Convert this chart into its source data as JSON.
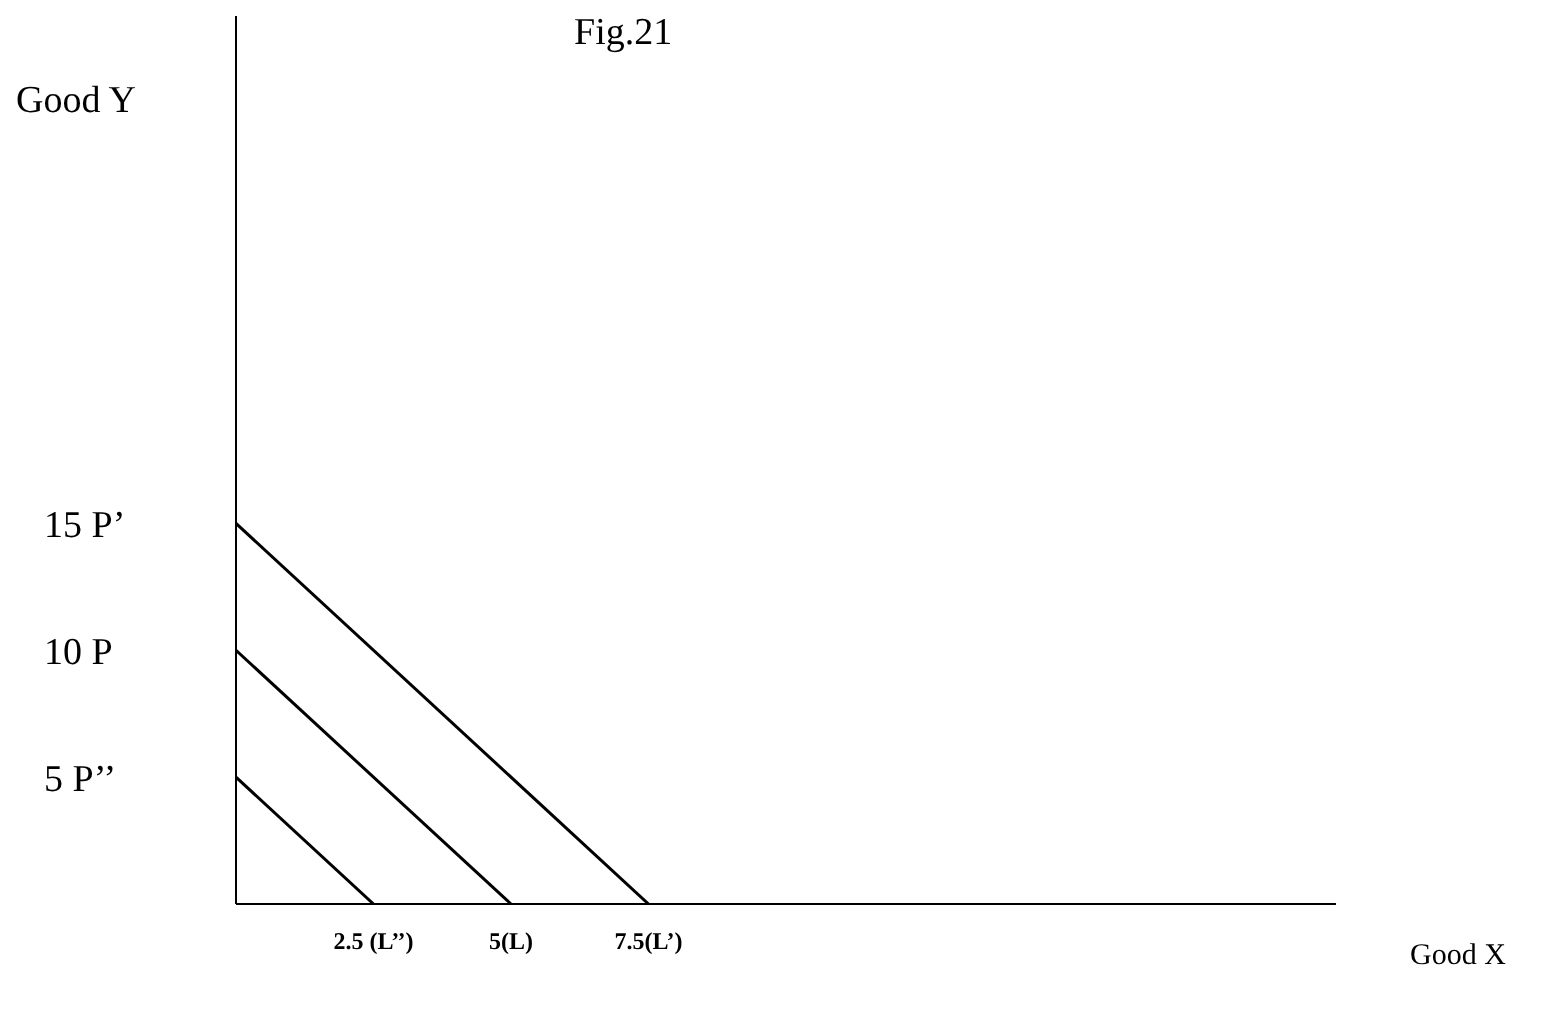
{
  "chart_data": {
    "type": "line",
    "title": "Fig.21",
    "xlabel": "Good X",
    "ylabel": "Good Y",
    "xlim": [
      0,
      20
    ],
    "ylim": [
      0,
      35
    ],
    "xticks": [
      {
        "value": 2.5,
        "label": "2.5 (L’’)"
      },
      {
        "value": 5,
        "label": "5(L)"
      },
      {
        "value": 7.5,
        "label": "7.5(L’)"
      }
    ],
    "yticks": [
      {
        "value": 5,
        "label": "5  P’’"
      },
      {
        "value": 10,
        "label": "10  P"
      },
      {
        "value": 15,
        "label": "15  P’"
      }
    ],
    "grid": false,
    "legend": false,
    "marker": "none",
    "line_style": "solid",
    "series": [
      {
        "x": [
          0,
          2.5
        ],
        "values": [
          5,
          0
        ],
        "color": "#000000"
      },
      {
        "x": [
          0,
          5
        ],
        "values": [
          10,
          0
        ],
        "color": "#000000"
      },
      {
        "x": [
          0,
          7.5
        ],
        "values": [
          15,
          0
        ],
        "color": "#000000"
      }
    ]
  }
}
